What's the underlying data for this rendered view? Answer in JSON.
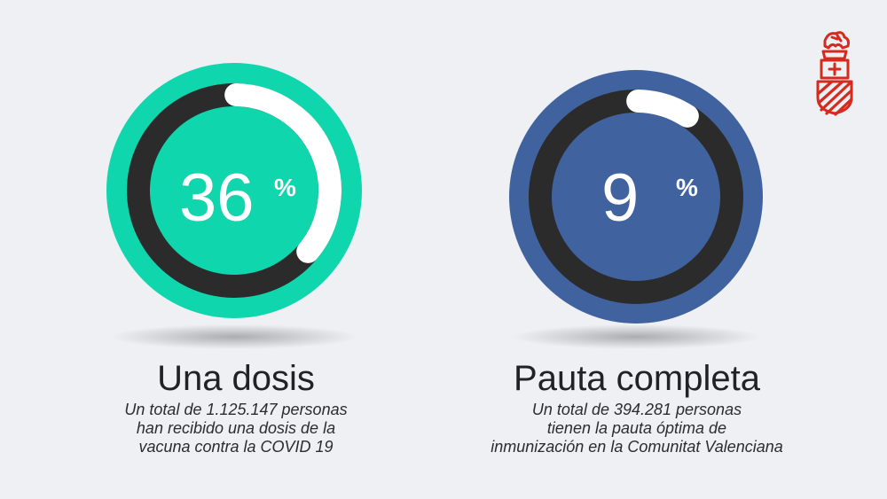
{
  "chart_data": [
    {
      "type": "pie",
      "title": "Una dosis",
      "value": 36,
      "value_label": "36",
      "unit": "%",
      "description": [
        "Un total de 1.125.147 personas",
        "han recibido una dosis de la",
        "vacuna contra la COVID 19"
      ],
      "colors": {
        "outer": "#0fd6ad",
        "track": "#2b2b2b",
        "progress": "#ffffff",
        "center": "#0fd6ad"
      }
    },
    {
      "type": "pie",
      "title": "Pauta completa",
      "value": 9,
      "value_label": "9",
      "unit": "%",
      "description": [
        "Un total de 394.281 personas",
        "tienen la pauta óptima de",
        "inmunización en la Comunitat Valenciana"
      ],
      "colors": {
        "outer": "#40629f",
        "track": "#2b2b2b",
        "progress": "#ffffff",
        "center": "#40629f"
      }
    }
  ],
  "logo": {
    "icon": "generalitat-valenciana-coat-of-arms-icon",
    "color": "#d52b1e"
  }
}
